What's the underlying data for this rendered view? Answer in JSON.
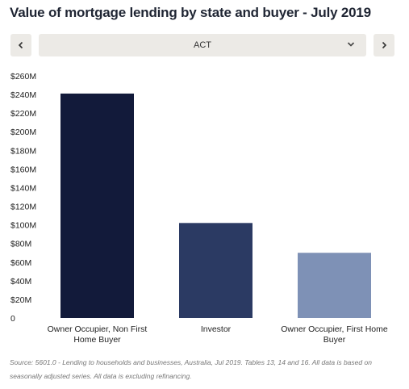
{
  "title": "Value of mortgage lending by state and buyer - July 2019",
  "selector": {
    "prev_icon": "chevron-left-icon",
    "next_icon": "chevron-right-icon",
    "value": "ACT",
    "dropdown_icon": "chevron-down-icon"
  },
  "chart_data": {
    "type": "bar",
    "categories": [
      "Owner Occupier, Non First Home Buyer",
      "Investor",
      "Owner Occupier, First Home Buyer"
    ],
    "category_lines": [
      [
        "Owner Occupier, Non First",
        "Home Buyer"
      ],
      [
        "Investor"
      ],
      [
        "Owner Occupier, First Home",
        "Buyer"
      ]
    ],
    "values": [
      241,
      102,
      70
    ],
    "colors": [
      "#121a3a",
      "#2b3a63",
      "#7e91b6"
    ],
    "unit": "M",
    "ylim": [
      0,
      260
    ],
    "yticks": [
      0,
      20,
      40,
      60,
      80,
      100,
      120,
      140,
      160,
      180,
      200,
      220,
      240,
      260
    ],
    "ytick_labels": [
      "0",
      "$20M",
      "$40M",
      "$60M",
      "$80M",
      "$100M",
      "$120M",
      "$140M",
      "$160M",
      "$180M",
      "$200M",
      "$220M",
      "$240M",
      "$260M"
    ],
    "grid": false,
    "legend": "none"
  },
  "source_text": "Source:  5601.0 - Lending to households and businesses, Australia, Jul 2019. Tables 13, 14 and 16. All data is based on seasonally adjusted series. All data is excluding refinancing."
}
